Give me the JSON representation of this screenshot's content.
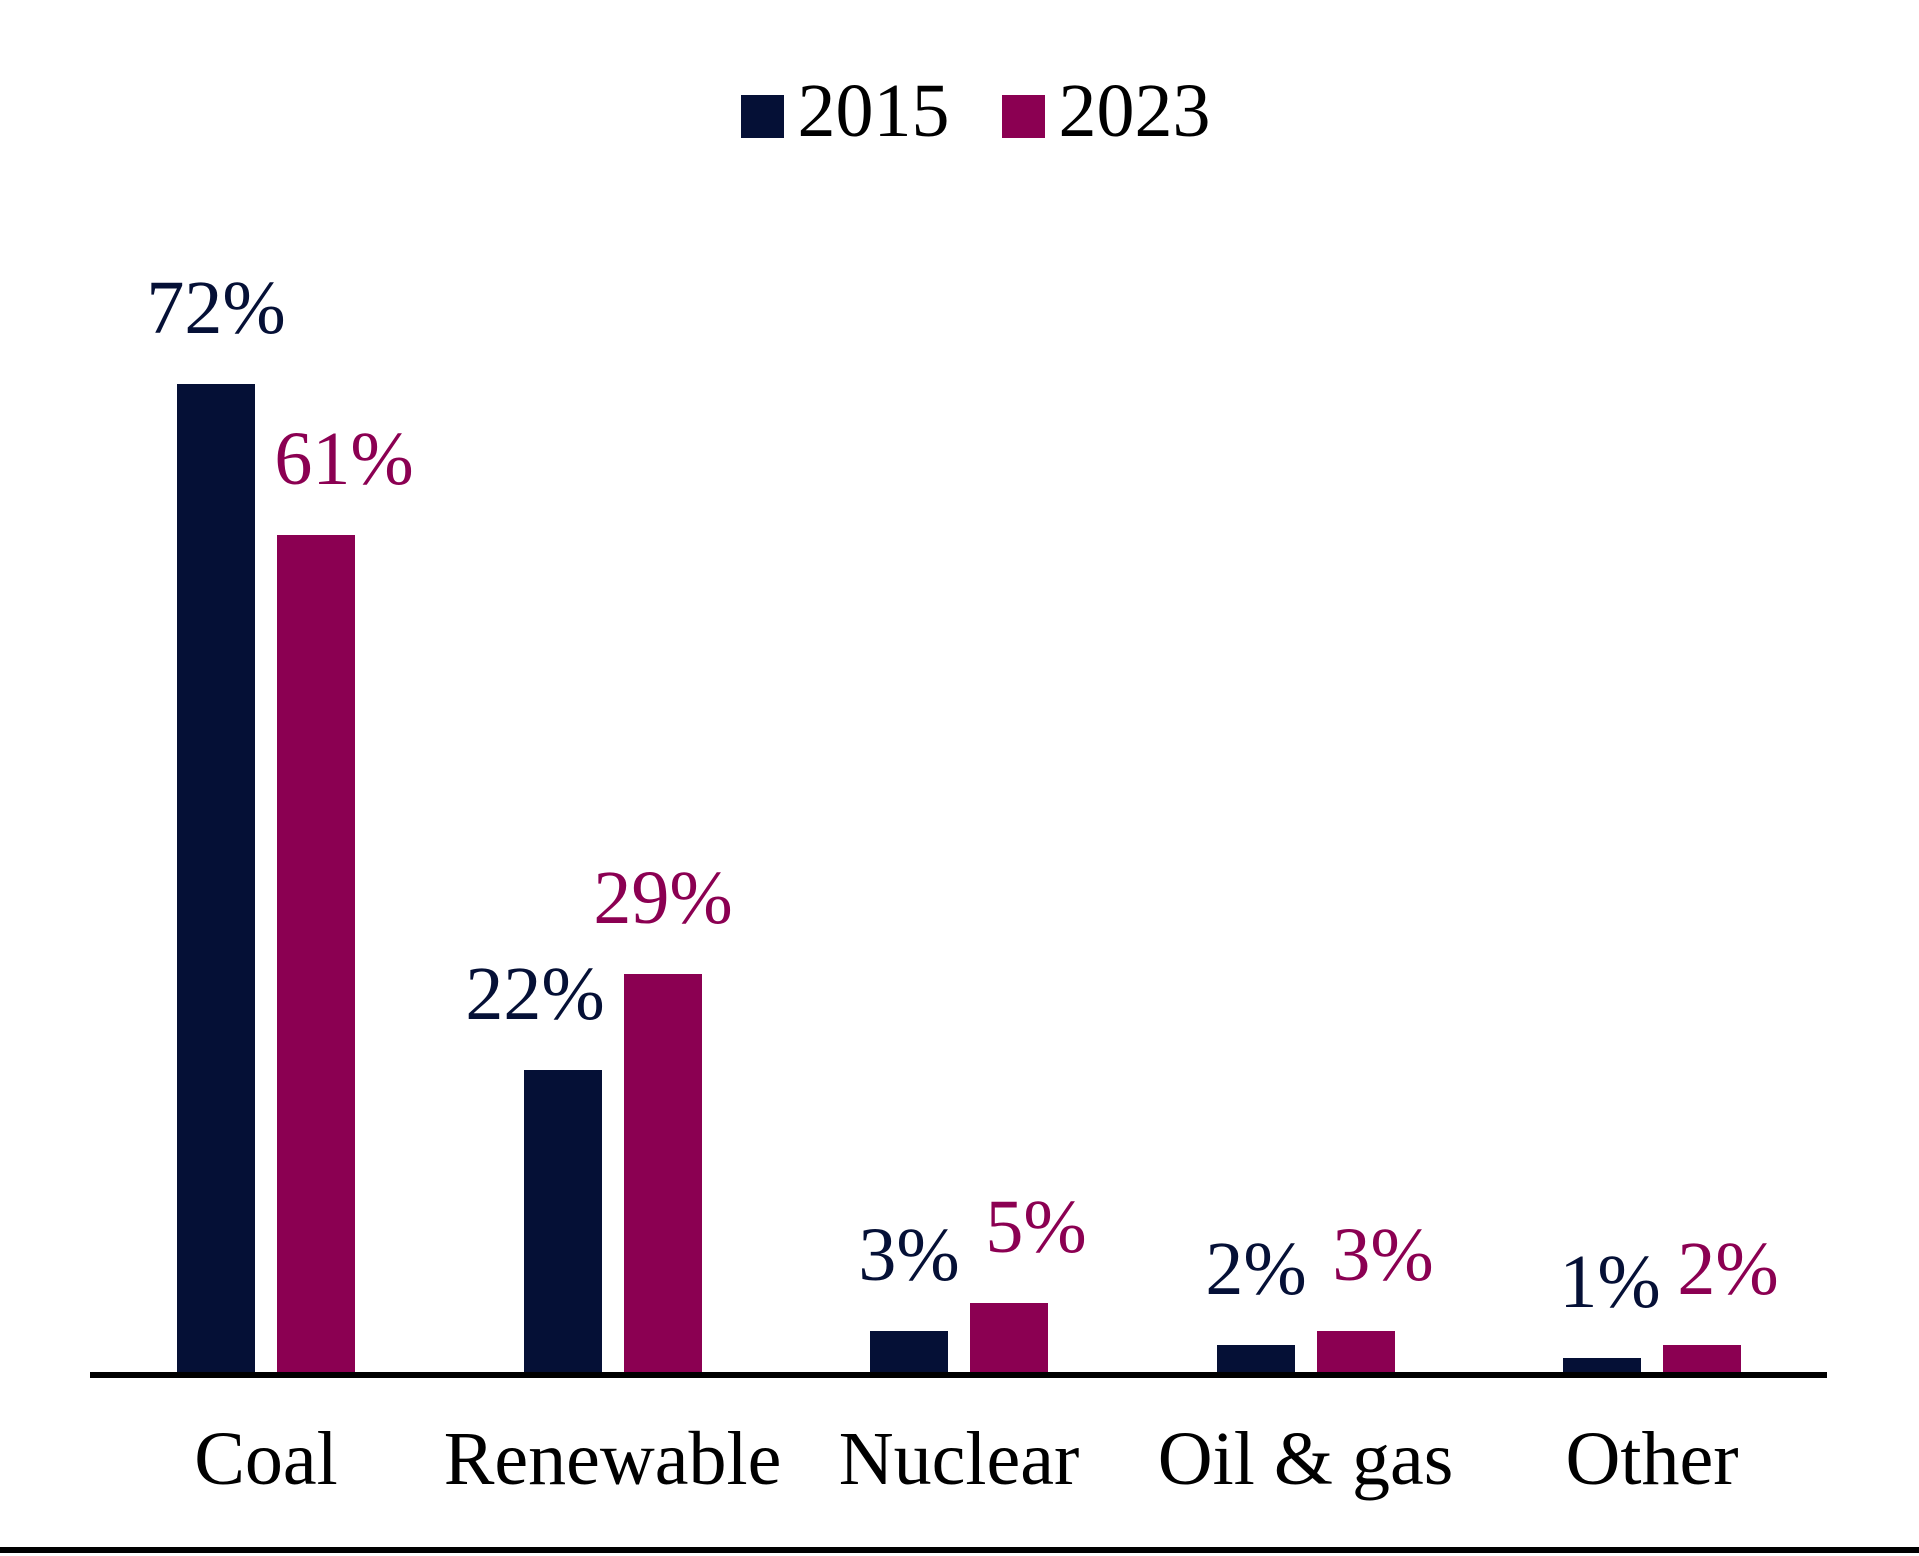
{
  "chart_data": {
    "type": "bar",
    "title": "",
    "categories": [
      "Coal",
      "Renewable",
      "Nuclear",
      "Oil & gas",
      "Other"
    ],
    "series": [
      {
        "name": "2015",
        "color": "#051036",
        "values": [
          72,
          22,
          3,
          2,
          1
        ],
        "data_labels": [
          "72%",
          "22%",
          "3%",
          "2%",
          "1%"
        ]
      },
      {
        "name": "2023",
        "color": "#8B0052",
        "values": [
          61,
          29,
          5,
          3,
          2
        ],
        "data_labels": [
          "61%",
          "29%",
          "5%",
          "3%",
          "2%"
        ]
      }
    ],
    "xlabel": "",
    "ylabel": "",
    "ylim": [
      0,
      100
    ],
    "grid": false,
    "y_axis_visible": false,
    "legend_position": "top-center",
    "data_label_position": "outside-end"
  },
  "colors": {
    "background": "#FFFFFF",
    "axis_line": "#000000",
    "bottom_rule": "#000000",
    "category_text": "#000000",
    "legend_text": "#000000"
  }
}
